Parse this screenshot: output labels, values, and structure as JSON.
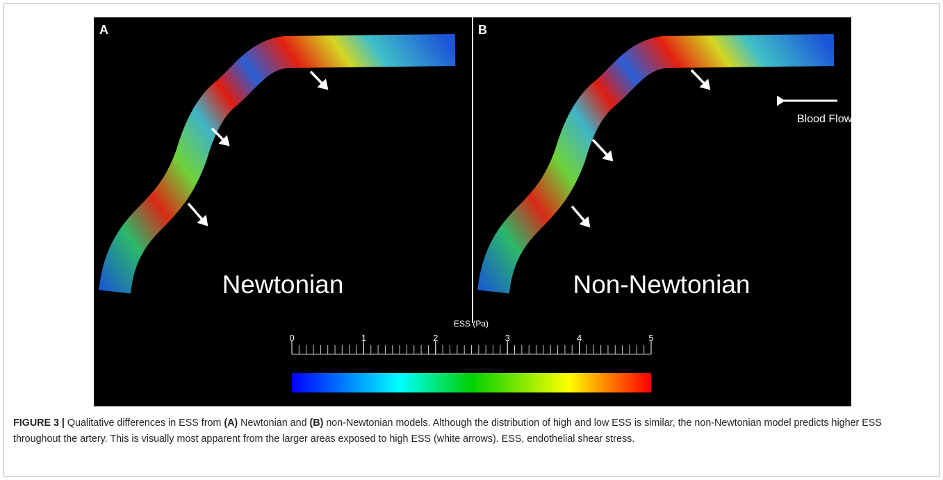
{
  "panels": [
    {
      "letter": "A",
      "label": "Newtonian"
    },
    {
      "letter": "B",
      "label": "Non-Newtonian"
    }
  ],
  "annotation": "Blood Flow",
  "colorbar": {
    "title": "ESS (Pa)",
    "lim": [
      0,
      5
    ],
    "ticks": [
      0,
      1,
      2,
      3,
      4,
      5
    ]
  },
  "caption": {
    "parts": [
      {
        "text": "FIGURE 3 |",
        "bold": true
      },
      {
        "text": " Qualitative differences in ESS from ",
        "bold": false
      },
      {
        "text": "(A)",
        "bold": true
      },
      {
        "text": " Newtonian and ",
        "bold": false
      },
      {
        "text": "(B)",
        "bold": true
      },
      {
        "text": " non-Newtonian models. Although the distribution of high and low ESS is similar, the non-Newtonian model predicts higher ESS throughout the artery. This is visually most apparent from the larger areas exposed to high ESS (white arrows). ESS, endothelial shear stress.",
        "bold": false
      }
    ]
  }
}
